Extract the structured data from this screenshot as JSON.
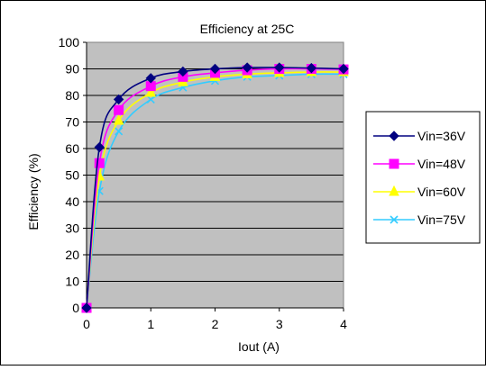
{
  "chart_data": {
    "type": "line",
    "title": "Efficiency at 25C",
    "xlabel": "Iout (A)",
    "ylabel": "Efficiency (%)",
    "xlim": [
      0,
      4
    ],
    "ylim": [
      0,
      100
    ],
    "x_ticks": [
      "0",
      "1",
      "2",
      "3",
      "4"
    ],
    "y_ticks": [
      "0",
      "10",
      "20",
      "30",
      "40",
      "50",
      "60",
      "70",
      "80",
      "90",
      "100"
    ],
    "grid": "horizontal",
    "plot_background": "#c0c0c0",
    "legend_position": "right",
    "x": [
      0,
      0.2,
      0.5,
      1.0,
      1.5,
      2.0,
      2.5,
      3.0,
      3.5,
      4.0
    ],
    "series": [
      {
        "name": "Vin=36V",
        "color": "#000080",
        "marker": "diamond",
        "values": [
          0,
          60.5,
          78.5,
          86.5,
          89,
          90,
          90.5,
          90.5,
          90.3,
          90.0
        ]
      },
      {
        "name": "Vin=48V",
        "color": "#ff00ff",
        "marker": "square",
        "values": [
          0,
          54.5,
          74.5,
          83.5,
          87,
          88.5,
          89.5,
          90,
          90,
          89.8
        ]
      },
      {
        "name": "Vin=60V",
        "color": "#ffff00",
        "marker": "triangle",
        "values": [
          0,
          49.5,
          70.5,
          81,
          85,
          87,
          88,
          88.5,
          88.8,
          88.8
        ]
      },
      {
        "name": "Vin=75V",
        "color": "#33ccff",
        "marker": "x",
        "values": [
          0,
          44,
          66.5,
          78.5,
          83,
          85.5,
          87,
          87.5,
          88,
          88
        ]
      }
    ]
  }
}
